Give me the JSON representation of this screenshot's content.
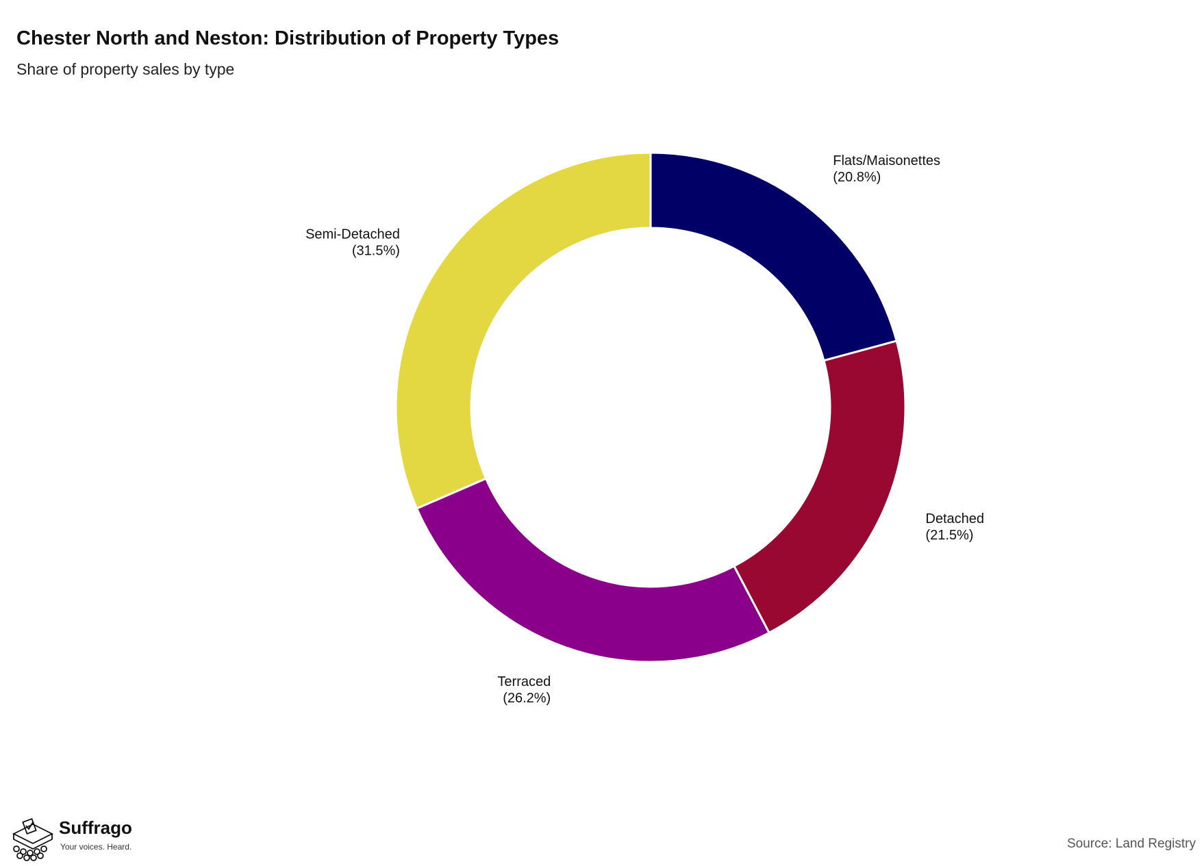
{
  "header": {
    "title": "Chester North and Neston: Distribution of Property Types",
    "subtitle": "Share of property sales by type"
  },
  "chart_data": {
    "type": "pie",
    "style": "donut",
    "title": "Chester North and Neston: Distribution of Property Types",
    "subtitle": "Share of property sales by type",
    "start_angle": "12 o'clock, clockwise",
    "slices": [
      {
        "label": "Flats/Maisonettes",
        "value": 20.8,
        "display": "(20.8%)",
        "color": "#000066"
      },
      {
        "label": "Detached",
        "value": 21.5,
        "display": "(21.5%)",
        "color": "#990830"
      },
      {
        "label": "Terraced",
        "value": 26.2,
        "display": "(26.2%)",
        "color": "#8b008b"
      },
      {
        "label": "Semi-Detached",
        "value": 31.5,
        "display": "(31.5%)",
        "color": "#e3d742"
      }
    ],
    "legend": "none"
  },
  "footer": {
    "brand_name": "Suffrago",
    "brand_tagline": "Your voices. Heard.",
    "source": "Source: Land Registry"
  }
}
